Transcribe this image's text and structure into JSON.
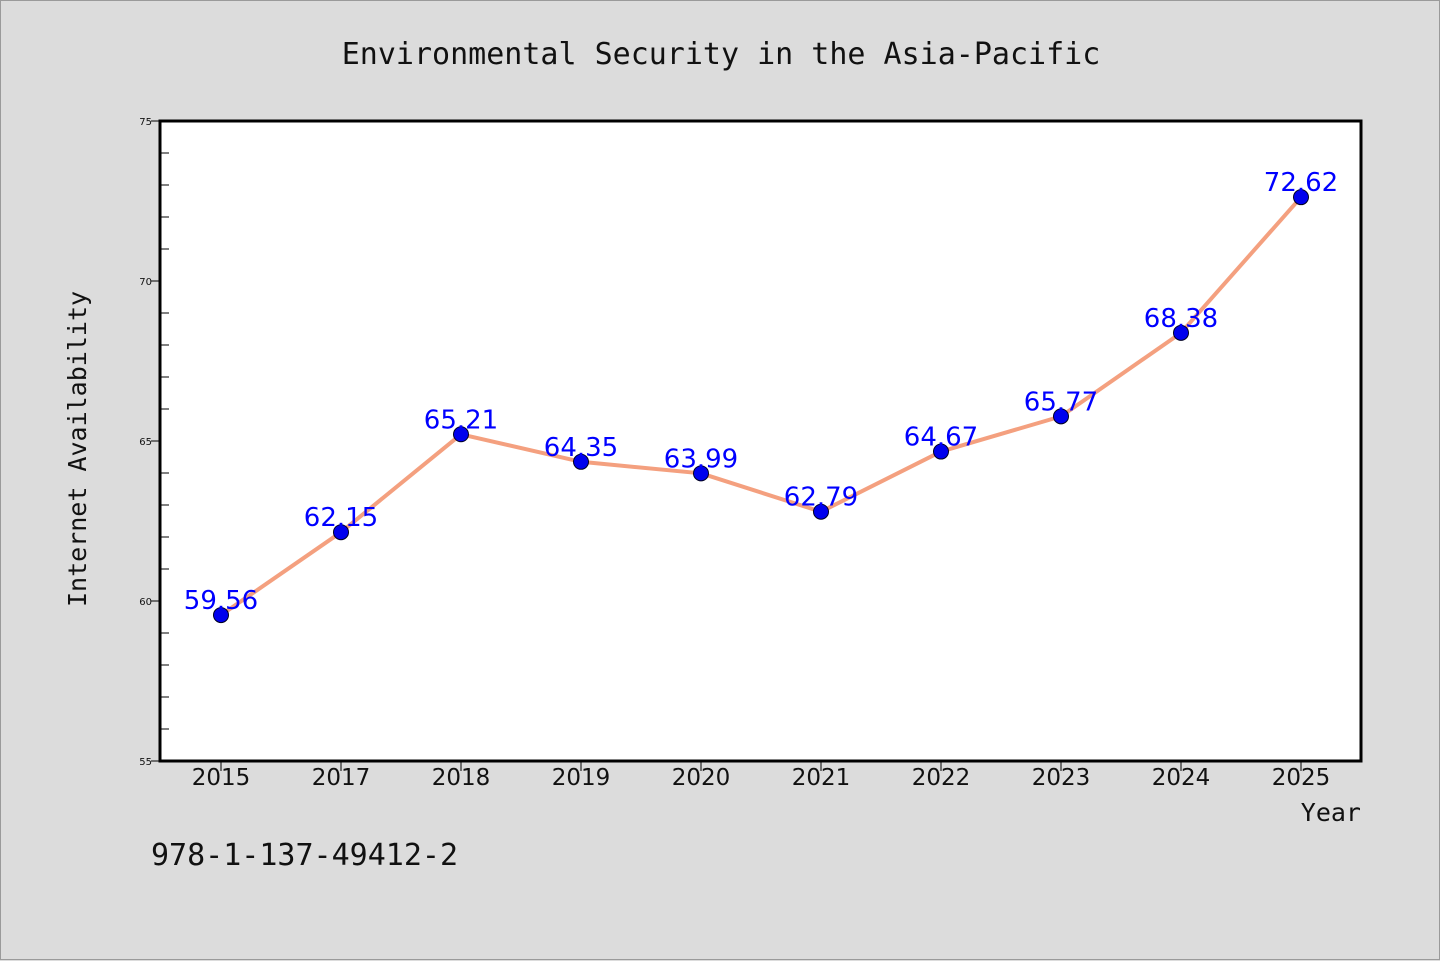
{
  "chart_data": {
    "type": "line",
    "title": "Environmental Security in the Asia-Pacific",
    "xlabel": "Year",
    "ylabel": "Internet Availability",
    "categories": [
      "2015",
      "2017",
      "2018",
      "2019",
      "2020",
      "2021",
      "2022",
      "2023",
      "2024",
      "2025"
    ],
    "series": [
      {
        "values": [
          59.56,
          62.15,
          65.21,
          64.35,
          63.99,
          62.79,
          64.67,
          65.77,
          68.38,
          72.62
        ],
        "labels": [
          "59.56",
          "62.15",
          "65.21",
          "64.35",
          "63.99",
          "62.79",
          "64.67",
          "65.77",
          "68.38",
          "72.62"
        ],
        "line_color": "#f4a07f",
        "marker_color": "#0000ee"
      }
    ],
    "ylim": [
      55,
      75
    ],
    "yticks": [
      "55",
      "60",
      "65",
      "70",
      "75"
    ],
    "grid": false,
    "legend": "none",
    "background": "#dcdcdc",
    "plot_background": "#ffffff"
  },
  "footer": {
    "text": "978-1-137-49412-2"
  }
}
